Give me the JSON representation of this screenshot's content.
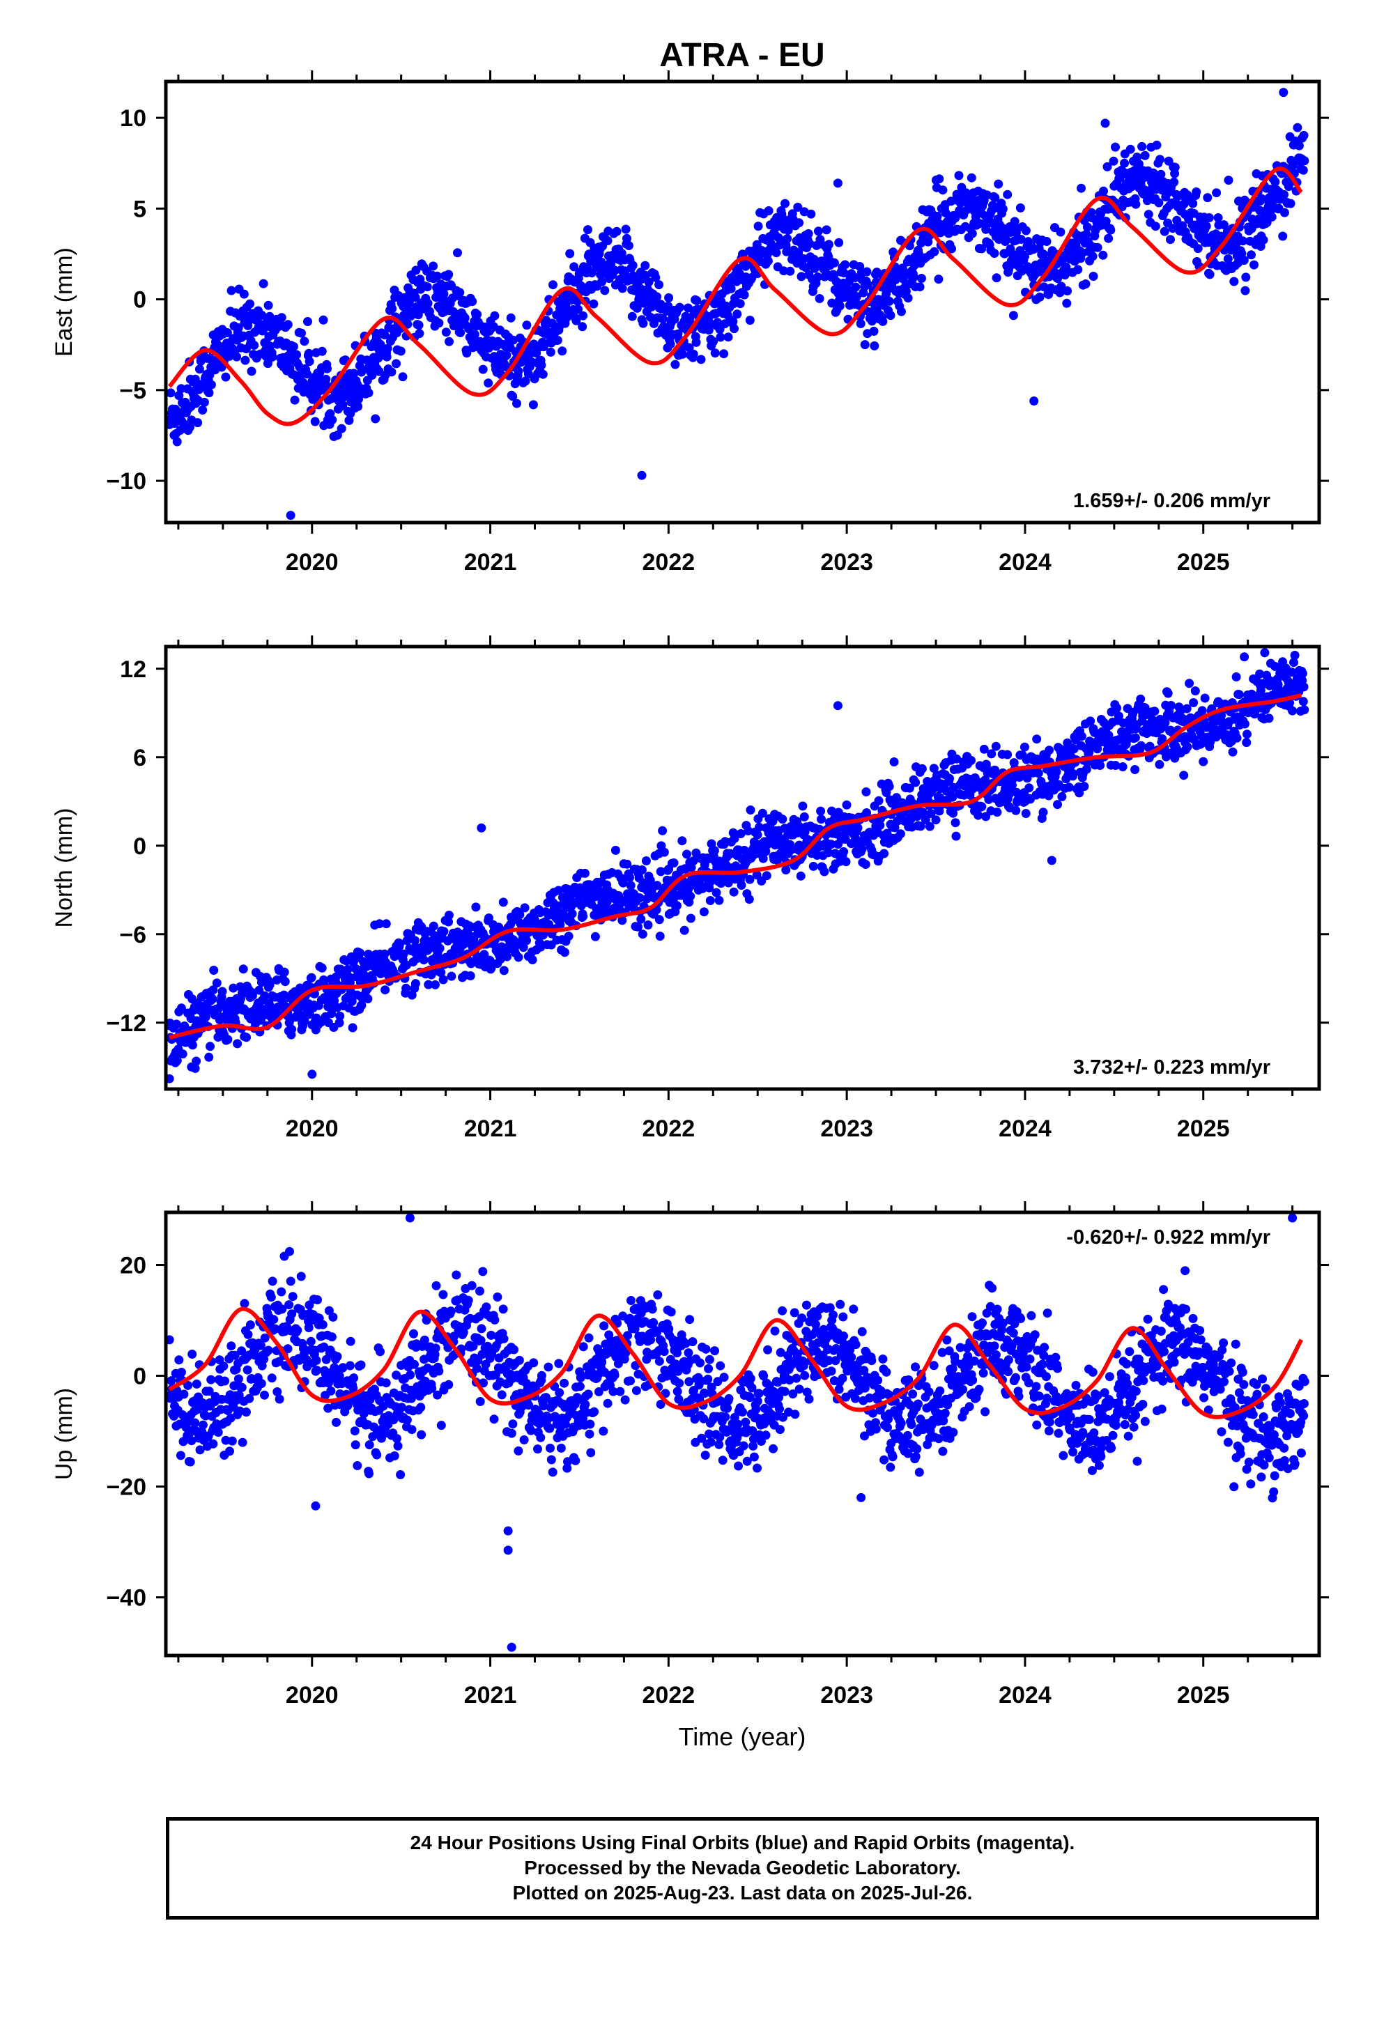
{
  "figure": {
    "title": "ATRA - EU",
    "xlabel": "Time (year)"
  },
  "colors": {
    "data": "#0000ff",
    "fit": "#ff0000",
    "frame": "#000000"
  },
  "chart_data": [
    {
      "type": "scatter",
      "ylabel": "East (mm)",
      "annotation": "1.659+/- 0.206 mm/yr",
      "xlim": [
        2019.18,
        2025.65
      ],
      "ylim": [
        -12.3,
        12
      ],
      "yticks": [
        -10,
        -5,
        0,
        5,
        10
      ],
      "xticks": [
        2020,
        2021,
        2022,
        2023,
        2024,
        2025
      ],
      "fit": {
        "x": [
          2019.2,
          2019.4,
          2019.6,
          2019.75,
          2019.9,
          2020.1,
          2020.4,
          2020.6,
          2020.9,
          2021.1,
          2021.4,
          2021.6,
          2021.9,
          2022.1,
          2022.4,
          2022.6,
          2022.9,
          2023.1,
          2023.4,
          2023.6,
          2023.9,
          2024.1,
          2024.4,
          2024.6,
          2024.9,
          2025.1,
          2025.4,
          2025.55
        ],
        "y": [
          -4.8,
          -2.8,
          -4.5,
          -6.3,
          -6.8,
          -5.0,
          -1.1,
          -2.5,
          -5.2,
          -4.0,
          0.5,
          -1.0,
          -3.5,
          -2.0,
          2.2,
          0.5,
          -1.9,
          -0.4,
          3.8,
          2.2,
          -0.3,
          1.2,
          5.5,
          4.0,
          1.5,
          2.9,
          7.1,
          5.9
        ]
      },
      "seasonal": {
        "amp": 2.2,
        "phase": 0.4,
        "trend": 1.659,
        "offset": -4.5
      },
      "noise": 1.0,
      "outliers": [
        [
          2019.88,
          -11.9
        ],
        [
          2021.85,
          -9.7
        ],
        [
          2022.95,
          6.4
        ],
        [
          2024.05,
          -5.6
        ],
        [
          2024.45,
          9.7
        ],
        [
          2025.45,
          11.4
        ]
      ]
    },
    {
      "type": "scatter",
      "ylabel": "North (mm)",
      "annotation": "3.732+/- 0.223 mm/yr",
      "xlim": [
        2019.18,
        2025.65
      ],
      "ylim": [
        -16.5,
        13.5
      ],
      "yticks": [
        -12,
        -6,
        0,
        6,
        12
      ],
      "xticks": [
        2020,
        2021,
        2022,
        2023,
        2024,
        2025
      ],
      "fit": {
        "x": [
          2019.2,
          2019.5,
          2019.75,
          2020.0,
          2020.3,
          2020.6,
          2020.85,
          2021.1,
          2021.4,
          2021.7,
          2021.9,
          2022.1,
          2022.4,
          2022.7,
          2022.9,
          2023.1,
          2023.4,
          2023.7,
          2023.9,
          2024.1,
          2024.4,
          2024.7,
          2024.9,
          2025.1,
          2025.4,
          2025.55
        ],
        "y": [
          -13.0,
          -12.2,
          -12.3,
          -9.8,
          -9.5,
          -8.5,
          -7.6,
          -5.8,
          -5.7,
          -4.8,
          -4.2,
          -2.0,
          -1.8,
          -1.0,
          1.2,
          1.8,
          2.7,
          3.0,
          5.0,
          5.4,
          6.0,
          6.3,
          8.0,
          9.2,
          9.8,
          10.2
        ]
      },
      "seasonal": {
        "amp": 0.6,
        "phase": 0.3,
        "trend": 3.732,
        "offset": -13.0
      },
      "noise": 1.1,
      "outliers": [
        [
          2019.2,
          -15.8
        ],
        [
          2020.0,
          -15.5
        ],
        [
          2020.95,
          1.2
        ],
        [
          2022.95,
          9.5
        ],
        [
          2024.15,
          -1.0
        ],
        [
          2025.23,
          12.8
        ]
      ]
    },
    {
      "type": "scatter",
      "ylabel": "Up (mm)",
      "annotation": "-0.620+/- 0.922 mm/yr",
      "xlim": [
        2019.18,
        2025.65
      ],
      "ylim": [
        -50.5,
        29.5
      ],
      "yticks": [
        -40,
        -20,
        0,
        20
      ],
      "xticks": [
        2020,
        2021,
        2022,
        2023,
        2024,
        2025
      ],
      "fit": {
        "x": [
          2019.2,
          2019.4,
          2019.6,
          2019.8,
          2020.0,
          2020.2,
          2020.4,
          2020.6,
          2020.8,
          2021.0,
          2021.2,
          2021.4,
          2021.6,
          2021.8,
          2022.0,
          2022.2,
          2022.4,
          2022.6,
          2022.8,
          2023.0,
          2023.2,
          2023.4,
          2023.6,
          2023.8,
          2024.0,
          2024.2,
          2024.4,
          2024.6,
          2024.8,
          2025.0,
          2025.2,
          2025.4,
          2025.55
        ],
        "y": [
          -2.5,
          2.0,
          12.0,
          6.0,
          -3.5,
          -3.8,
          1.0,
          11.5,
          5.0,
          -4.2,
          -4.0,
          0.5,
          10.8,
          4.0,
          -5.0,
          -4.8,
          0.0,
          10.0,
          3.0,
          -5.5,
          -5.0,
          -0.5,
          9.2,
          2.0,
          -6.0,
          -5.8,
          -1.0,
          8.6,
          1.0,
          -6.8,
          -6.5,
          -2.0,
          6.5
        ]
      },
      "seasonal": {
        "amp": 7.5,
        "phase": 0.62,
        "trend": -0.62,
        "offset": 1.0
      },
      "noise": 4.5,
      "outliers": [
        [
          2021.1,
          -28.0
        ],
        [
          2021.1,
          -31.5
        ],
        [
          2021.12,
          -49.0
        ],
        [
          2020.02,
          -23.5
        ],
        [
          2020.55,
          28.5
        ],
        [
          2023.08,
          -22.0
        ],
        [
          2025.5,
          28.5
        ]
      ]
    }
  ],
  "footer": {
    "line1": "24 Hour Positions Using Final Orbits (blue) and Rapid Orbits (magenta).",
    "line2": "Processed by the Nevada Geodetic Laboratory.",
    "line3": "Plotted on 2025-Aug-23. Last data on 2025-Jul-26."
  }
}
